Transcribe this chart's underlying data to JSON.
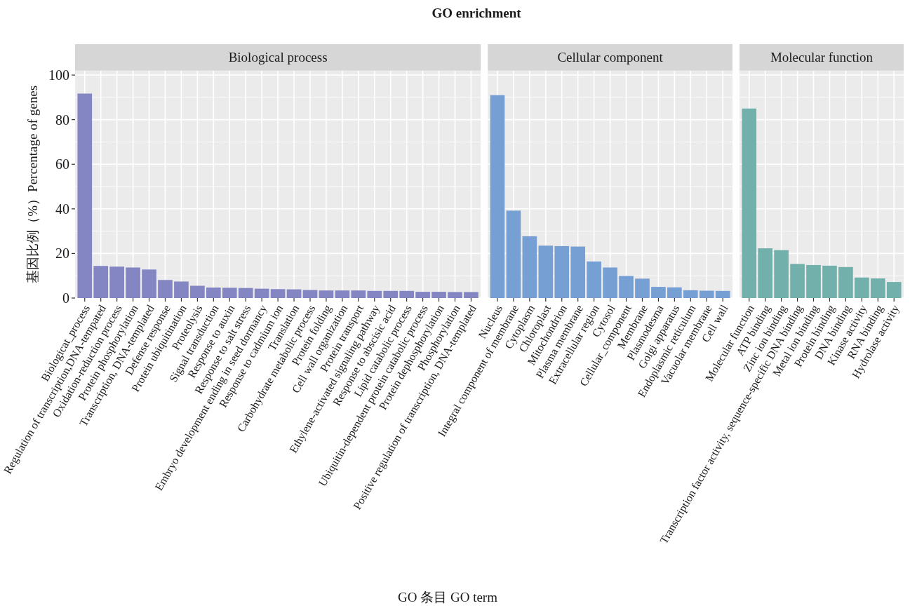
{
  "chart_data": [
    {
      "type": "bar",
      "title": "Biological process",
      "annotations": [
        "GO enrichment"
      ],
      "ylabel": "基因比例（%）Percentage of genes",
      "xlabel": "GO 条目 GO term",
      "categories": [
        "Biologicat_process",
        "Regulation of transcription,DNA-tempated",
        "Oxidation-reduction process",
        "Protein phosphorylation",
        "Transcription, DNA-templated",
        "Defense response",
        "Protein ubiquitination",
        "Proteolysis",
        "Signal transduction",
        "Response to auxin",
        "Response to salt stress",
        "Embryo development ending in seed dormancy",
        "Response to cadmium ion",
        "Translation",
        "Carbohydrate metabolic process",
        "Protein folding",
        "Cell wall organization",
        "Protein transport",
        "Ethylene-activated signaling pathway",
        "Response to abscisic acid",
        "Lipid catabolic process",
        "Ubiquitin-dependent protein catabolic process",
        "Protein dephosphorylation",
        "Phosphorylation",
        "Positive regulation of transcription, DNA-templated"
      ],
      "values": [
        91.7,
        14.4,
        14.1,
        13.7,
        12.8,
        8.1,
        7.4,
        5.5,
        4.7,
        4.6,
        4.5,
        4.2,
        4.0,
        3.9,
        3.6,
        3.4,
        3.4,
        3.4,
        3.2,
        3.2,
        3.2,
        2.8,
        2.8,
        2.7,
        2.7
      ],
      "color": "#8486C4",
      "ylim": [
        0,
        102
      ],
      "yticks": [
        0,
        20,
        40,
        60,
        80,
        100
      ],
      "grid": true
    },
    {
      "type": "bar",
      "title": "Cellular component",
      "categories": [
        "Nucleus",
        "Integral component of membrane",
        "Cytoplasm",
        "Chloroplast",
        "Mitochondrion",
        "Plasma membrane",
        "Extracellular region",
        "Cytosol",
        "Cellular_component",
        "Membrane",
        "Plasmodesma",
        "Golgi apparatus",
        "Endoplasmic reticulum",
        "Vacuolar membrane",
        "Cell wall"
      ],
      "values": [
        91.0,
        39.2,
        27.7,
        23.5,
        23.3,
        23.1,
        16.4,
        13.7,
        9.9,
        8.7,
        5.0,
        4.8,
        3.5,
        3.3,
        3.2
      ],
      "color": "#769FD4",
      "ylim": [
        0,
        102
      ],
      "yticks": [
        0,
        20,
        40,
        60,
        80,
        100
      ],
      "grid": true,
      "tick_labels": "x"
    },
    {
      "type": "bar",
      "title": "Molecular function",
      "categories": [
        "Molecular function",
        "ATP binding",
        "Zinc ion binding",
        "Transcription factor activity, sequence-specific DNA binding",
        "Metal ion binding",
        "Protein binding",
        "DNA binding",
        "Kinase activity",
        "RNA binding",
        "Hydrolase activity"
      ],
      "values": [
        85.0,
        22.3,
        21.5,
        15.3,
        14.8,
        14.5,
        13.9,
        9.2,
        8.8,
        7.2
      ],
      "color": "#72B0AB",
      "ylim": [
        0,
        102
      ],
      "yticks": [
        0,
        20,
        40,
        60,
        80,
        100
      ],
      "grid": true,
      "tick_labels": "x"
    }
  ]
}
